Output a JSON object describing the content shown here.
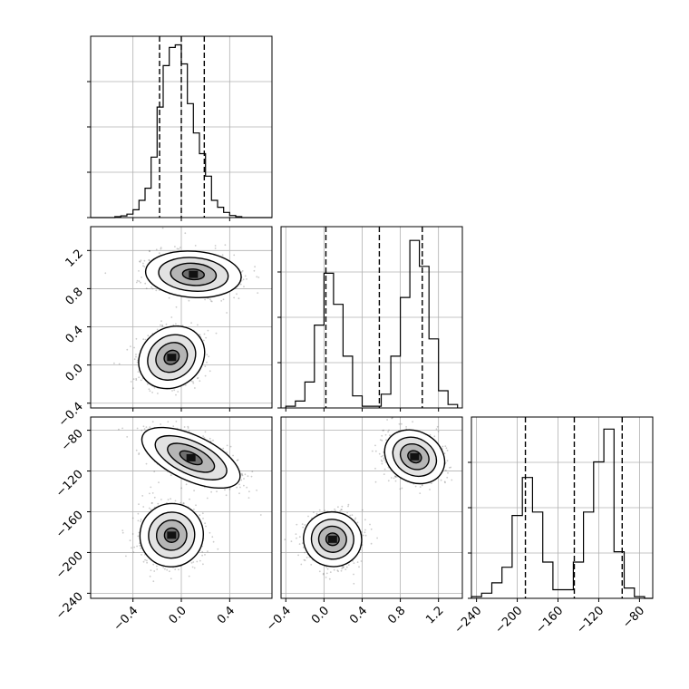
{
  "chart_data": {
    "type": "corner",
    "parameters": [
      {
        "range": [
          -0.75,
          0.75
        ],
        "ticks": [
          -0.4,
          0.0,
          0.4
        ],
        "tick_labels": [
          "−0.4",
          "0.0",
          "0.4"
        ],
        "quantiles": [
          -0.18,
          0.0,
          0.19
        ]
      },
      {
        "range": [
          -0.45,
          1.45
        ],
        "ticks": [
          -0.4,
          0.0,
          0.4,
          0.8,
          1.2
        ],
        "tick_labels": [
          "−0.4",
          "0.0",
          "0.4",
          "0.8",
          "1.2"
        ],
        "quantiles": [
          0.02,
          0.58,
          1.03
        ]
      },
      {
        "range": [
          -245,
          -67
        ],
        "ticks": [
          -240,
          -200,
          -160,
          -120,
          -80
        ],
        "tick_labels": [
          "−240",
          "−200",
          "−160",
          "−120",
          "−80"
        ],
        "quantiles": [
          -192,
          -144,
          -97
        ]
      }
    ],
    "histograms": [
      {
        "edges": [
          -0.75,
          -0.7,
          -0.65,
          -0.6,
          -0.55,
          -0.5,
          -0.45,
          -0.4,
          -0.35,
          -0.3,
          -0.25,
          -0.2,
          -0.15,
          -0.1,
          -0.05,
          0.0,
          0.05,
          0.1,
          0.15,
          0.2,
          0.25,
          0.3,
          0.35,
          0.4,
          0.45,
          0.5,
          0.55,
          0.6,
          0.65,
          0.7,
          0.75
        ],
        "counts": [
          0,
          0,
          0,
          0,
          0.005,
          0.01,
          0.02,
          0.045,
          0.1,
          0.17,
          0.35,
          0.64,
          0.88,
          0.985,
          1.0,
          0.89,
          0.66,
          0.49,
          0.37,
          0.24,
          0.1,
          0.06,
          0.03,
          0.012,
          0.005,
          0,
          0,
          0,
          0,
          0
        ],
        "ymax": 1.05
      },
      {
        "edges": [
          -0.4,
          -0.3,
          -0.2,
          -0.1,
          0.0,
          0.1,
          0.2,
          0.3,
          0.4,
          0.5,
          0.6,
          0.7,
          0.8,
          0.9,
          1.0,
          1.1,
          1.2,
          1.3,
          1.4
        ],
        "counts": [
          0.01,
          0.04,
          0.15,
          0.48,
          0.78,
          0.6,
          0.3,
          0.07,
          0.01,
          0.01,
          0.08,
          0.3,
          0.64,
          0.97,
          0.82,
          0.4,
          0.1,
          0.02
        ],
        "ymax": 1.05
      },
      {
        "edges": [
          -245,
          -235,
          -225,
          -215,
          -205,
          -195,
          -185,
          -175,
          -165,
          -155,
          -145,
          -135,
          -125,
          -115,
          -105,
          -95,
          -85,
          -75,
          -67
        ],
        "counts": [
          0.01,
          0.03,
          0.09,
          0.18,
          0.48,
          0.7,
          0.5,
          0.21,
          0.05,
          0.05,
          0.21,
          0.5,
          0.79,
          0.98,
          0.27,
          0.06,
          0.01,
          0.0
        ],
        "ymax": 1.05
      }
    ],
    "blobs_1_0": [
      {
        "center": [
          0.1,
          0.95
        ],
        "spread": [
          0.18,
          0.11
        ],
        "angle_deg": -4
      },
      {
        "center": [
          -0.08,
          0.08
        ],
        "spread": [
          0.13,
          0.14
        ],
        "angle_deg": 35
      }
    ],
    "blobs_2_0": [
      {
        "center": [
          0.08,
          -107
        ],
        "spread": [
          0.2,
          10
        ],
        "angle_deg": -25
      },
      {
        "center": [
          -0.08,
          -183
        ],
        "spread": [
          0.12,
          14
        ],
        "angle_deg": 40
      }
    ],
    "blobs_2_1": [
      {
        "center": [
          0.95,
          -106
        ],
        "spread": [
          0.12,
          14
        ],
        "angle_deg": 60
      },
      {
        "center": [
          0.09,
          -187
        ],
        "spread": [
          0.13,
          13
        ],
        "angle_deg": 80
      }
    ]
  }
}
